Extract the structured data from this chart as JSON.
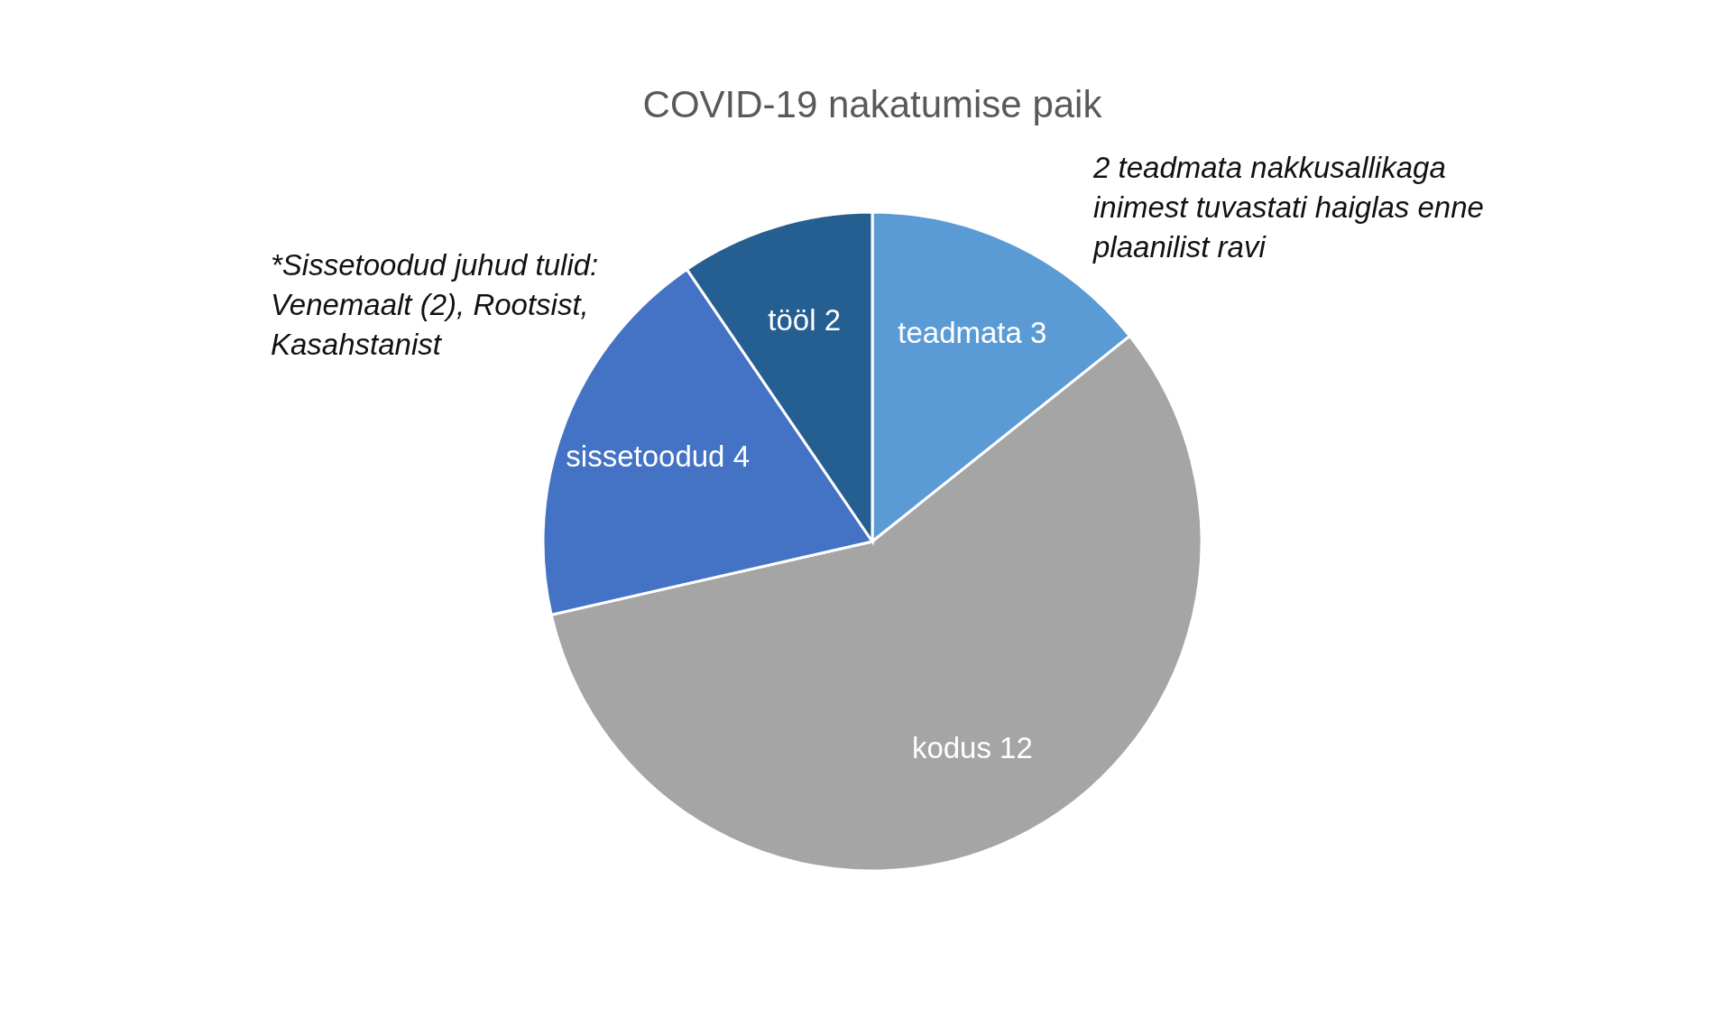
{
  "chart_data": {
    "type": "pie",
    "title": "COVID-19 nakatumise paik",
    "categories": [
      "teadmata",
      "kodus",
      "sissetoodud",
      "tööl"
    ],
    "values": [
      3,
      12,
      4,
      2
    ],
    "colors": [
      "#5b9bd5",
      "#a5a5a5",
      "#4472c4",
      "#255e91"
    ],
    "data_labels": true,
    "legend": false,
    "annotations": [
      "*Sissetoodud juhud tulid: Venemaalt (2), Rootsist, Kasahstanist",
      "2 teadmata nakkusallikaga inimest tuvastati haiglas enne plaanilist ravi"
    ]
  }
}
